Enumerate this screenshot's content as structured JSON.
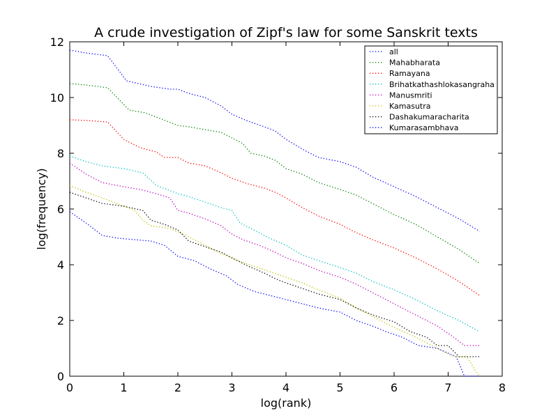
{
  "chart_data": {
    "type": "line",
    "title": "A crude investigation of Zipf's law for some Sanskrit texts",
    "xlabel": "log(rank)",
    "ylabel": "log(frequency)",
    "xlim": [
      0,
      8
    ],
    "ylim": [
      0,
      12
    ],
    "xticks": [
      "0",
      "1",
      "2",
      "3",
      "4",
      "5",
      "6",
      "7",
      "8"
    ],
    "yticks": [
      "0",
      "2",
      "4",
      "6",
      "8",
      "10",
      "12"
    ],
    "grid": false,
    "legend_position": "top-right",
    "line_style": "dotted",
    "series": [
      {
        "name": "all",
        "color": "#0000ff",
        "x": [
          0,
          0.3,
          0.7,
          1.05,
          1.5,
          1.85,
          2.0,
          2.2,
          2.5,
          2.8,
          3.0,
          3.3,
          3.6,
          3.8,
          4.0,
          4.3,
          4.6,
          5.0,
          5.3,
          5.6,
          6.0,
          6.4,
          6.8,
          7.2,
          7.58
        ],
        "y": [
          11.7,
          11.6,
          11.5,
          10.6,
          10.4,
          10.3,
          10.3,
          10.15,
          10.0,
          9.7,
          9.4,
          9.15,
          8.95,
          8.8,
          8.5,
          8.15,
          7.85,
          7.7,
          7.5,
          7.15,
          6.8,
          6.45,
          6.05,
          5.65,
          5.2
        ]
      },
      {
        "name": "Mahabharata",
        "color": "#008000",
        "x": [
          0,
          0.3,
          0.7,
          1.1,
          1.4,
          1.8,
          2.0,
          2.2,
          2.5,
          2.8,
          3.0,
          3.2,
          3.35,
          3.6,
          3.8,
          4.0,
          4.3,
          4.6,
          5.0,
          5.3,
          5.6,
          6.0,
          6.4,
          6.8,
          7.2,
          7.58
        ],
        "y": [
          10.5,
          10.45,
          10.35,
          9.55,
          9.45,
          9.15,
          9.0,
          8.95,
          8.85,
          8.75,
          8.55,
          8.35,
          8.0,
          7.9,
          7.75,
          7.45,
          7.25,
          6.95,
          6.7,
          6.5,
          6.2,
          5.8,
          5.45,
          5.0,
          4.55,
          4.05
        ]
      },
      {
        "name": "Ramayana",
        "color": "#ff0000",
        "x": [
          0,
          0.3,
          0.7,
          1.0,
          1.3,
          1.6,
          1.75,
          2.0,
          2.2,
          2.5,
          2.8,
          3.0,
          3.3,
          3.6,
          3.8,
          4.0,
          4.3,
          4.6,
          5.0,
          5.3,
          5.6,
          6.0,
          6.4,
          6.8,
          7.2,
          7.58
        ],
        "y": [
          9.2,
          9.18,
          9.12,
          8.5,
          8.2,
          8.05,
          7.85,
          7.85,
          7.65,
          7.55,
          7.3,
          7.1,
          6.9,
          6.75,
          6.6,
          6.4,
          6.05,
          5.75,
          5.45,
          5.15,
          4.9,
          4.6,
          4.25,
          3.85,
          3.4,
          2.9
        ]
      },
      {
        "name": "Brihatkathashlokasangraha",
        "color": "#00bfbf",
        "x": [
          0,
          0.3,
          0.6,
          1.0,
          1.35,
          1.6,
          1.8,
          2.0,
          2.2,
          2.5,
          2.8,
          3.0,
          3.15,
          3.4,
          3.7,
          4.0,
          4.3,
          4.6,
          5.0,
          5.3,
          5.6,
          6.0,
          6.4,
          6.8,
          7.2,
          7.58
        ],
        "y": [
          7.9,
          7.7,
          7.55,
          7.45,
          7.3,
          6.85,
          6.7,
          6.55,
          6.45,
          6.25,
          6.05,
          5.95,
          5.5,
          5.25,
          4.95,
          4.7,
          4.35,
          4.15,
          3.9,
          3.7,
          3.4,
          3.1,
          2.75,
          2.35,
          2.0,
          1.6
        ]
      },
      {
        "name": "Manusmriti",
        "color": "#bf00bf",
        "x": [
          0,
          0.3,
          0.6,
          1.0,
          1.3,
          1.6,
          1.85,
          2.0,
          2.2,
          2.5,
          2.8,
          3.0,
          3.2,
          3.5,
          3.8,
          4.0,
          4.3,
          4.6,
          5.0,
          5.3,
          5.6,
          6.0,
          6.4,
          6.8,
          7.1,
          7.3,
          7.58
        ],
        "y": [
          7.65,
          7.25,
          6.95,
          6.8,
          6.7,
          6.55,
          6.4,
          5.95,
          5.85,
          5.65,
          5.4,
          5.1,
          4.9,
          4.7,
          4.45,
          4.25,
          4.05,
          3.8,
          3.55,
          3.3,
          3.0,
          2.6,
          2.2,
          1.8,
          1.4,
          1.1,
          1.1
        ]
      },
      {
        "name": "Kamasutra",
        "color": "#bfbf00",
        "x": [
          0,
          0.3,
          0.6,
          1.0,
          1.2,
          1.35,
          1.5,
          1.85,
          2.1,
          2.4,
          2.8,
          3.1,
          3.4,
          3.7,
          4.0,
          4.3,
          4.6,
          5.0,
          5.3,
          5.6,
          6.0,
          6.4,
          6.8,
          7.1,
          7.35,
          7.5,
          7.58
        ],
        "y": [
          6.85,
          6.6,
          6.4,
          6.1,
          5.95,
          5.6,
          5.4,
          5.3,
          5.1,
          4.8,
          4.4,
          4.15,
          3.95,
          3.75,
          3.55,
          3.35,
          3.1,
          2.8,
          2.45,
          2.15,
          1.75,
          1.4,
          1.0,
          0.7,
          0.7,
          0.2,
          0.0
        ]
      },
      {
        "name": "Dashakumaracharita",
        "color": "#000000",
        "x": [
          0,
          0.3,
          0.6,
          1.0,
          1.35,
          1.5,
          1.75,
          2.0,
          2.2,
          2.5,
          2.8,
          3.0,
          3.3,
          3.6,
          3.8,
          4.0,
          4.3,
          4.6,
          5.0,
          5.3,
          5.6,
          6.0,
          6.3,
          6.6,
          6.8,
          7.0,
          7.2,
          7.58
        ],
        "y": [
          6.6,
          6.4,
          6.2,
          6.1,
          5.95,
          5.6,
          5.45,
          5.25,
          4.85,
          4.65,
          4.45,
          4.25,
          3.95,
          3.7,
          3.5,
          3.35,
          3.15,
          2.95,
          2.75,
          2.45,
          2.2,
          1.95,
          1.6,
          1.4,
          1.1,
          1.1,
          0.7,
          0.7
        ]
      },
      {
        "name": "Kumarasambhava",
        "color": "#0000ff",
        "x": [
          0,
          0.3,
          0.6,
          0.9,
          1.2,
          1.5,
          1.75,
          2.0,
          2.3,
          2.6,
          2.9,
          3.1,
          3.4,
          3.7,
          4.0,
          4.3,
          4.6,
          5.0,
          5.3,
          5.6,
          5.85,
          6.15,
          6.45,
          6.8,
          7.15,
          7.3,
          7.58
        ],
        "y": [
          5.9,
          5.5,
          5.05,
          4.95,
          4.9,
          4.85,
          4.7,
          4.3,
          4.15,
          3.85,
          3.6,
          3.3,
          3.05,
          2.9,
          2.75,
          2.6,
          2.45,
          2.3,
          2.0,
          1.8,
          1.6,
          1.4,
          1.1,
          1.0,
          0.7,
          0.0,
          0.0
        ]
      }
    ]
  }
}
